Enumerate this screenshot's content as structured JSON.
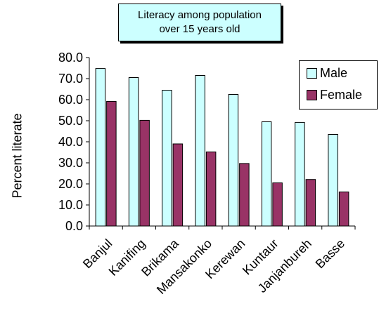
{
  "chart_data": {
    "type": "bar",
    "title_lines": [
      "Literacy among population",
      "over 15 years old"
    ],
    "ylabel": "Percent literate",
    "xlabel": "",
    "categories": [
      "Banjul",
      "Kanifing",
      "Brikama",
      "Mansakonko",
      "Kerewan",
      "Kuntaur",
      "Janjanbureh",
      "Basse"
    ],
    "series": [
      {
        "name": "Male",
        "color": "#ccffff",
        "values": [
          74.8,
          70.5,
          64.5,
          71.5,
          62.5,
          49.5,
          49.2,
          43.5
        ]
      },
      {
        "name": "Female",
        "color": "#993366",
        "values": [
          59.2,
          50.2,
          39.0,
          35.2,
          29.7,
          20.5,
          22.1,
          16.2
        ]
      }
    ],
    "ylim": [
      0,
      80
    ],
    "yticks": [
      "0.0",
      "10.0",
      "20.0",
      "30.0",
      "40.0",
      "50.0",
      "60.0",
      "70.0",
      "80.0"
    ],
    "grid": false,
    "legend_position": "right"
  }
}
